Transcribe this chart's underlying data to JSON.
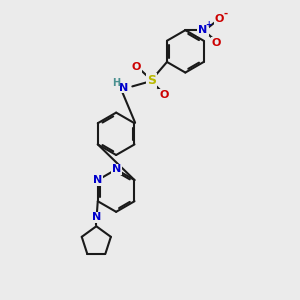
{
  "bg_color": "#ebebeb",
  "bond_color": "#1a1a1a",
  "bond_width": 1.5,
  "dbo": 0.06,
  "atom_colors": {
    "C": "#1a1a1a",
    "N": "#0000cc",
    "O": "#cc0000",
    "S": "#b8b800",
    "H": "#4a9090"
  },
  "font_size": 7.5
}
